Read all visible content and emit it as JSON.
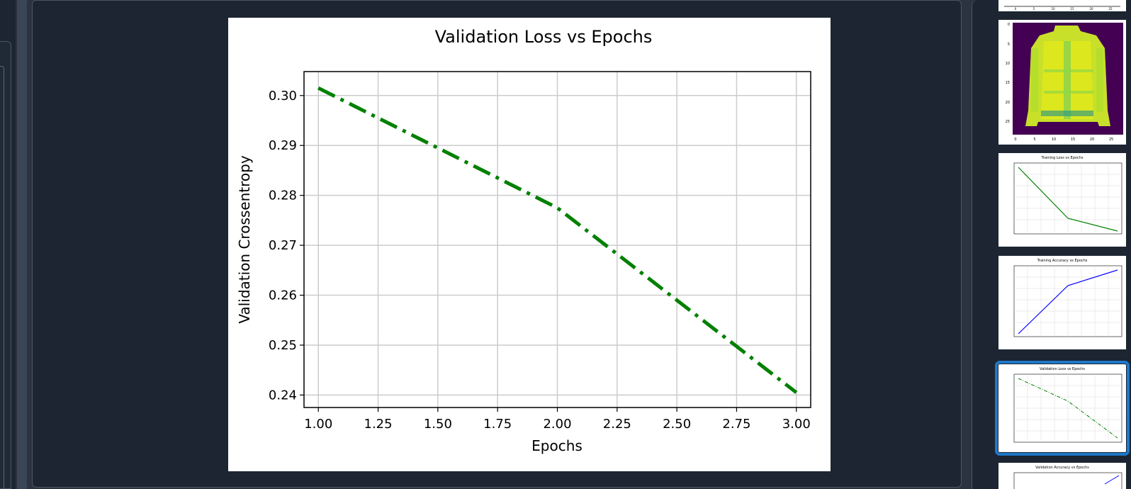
{
  "main_plot": {
    "chart_data": {
      "type": "line",
      "title": "Validation Loss vs Epochs",
      "xlabel": "Epochs",
      "ylabel": "Validation Crossentropy",
      "x": [
        1.0,
        2.0,
        3.0
      ],
      "series": [
        {
          "values": [
            0.3015,
            0.2775,
            0.2405
          ],
          "color": "#008000",
          "style": "dashdot"
        }
      ],
      "xlim": [
        0.94,
        3.06
      ],
      "ylim": [
        0.2375,
        0.3048
      ],
      "x_ticks": [
        1.0,
        1.25,
        1.5,
        1.75,
        2.0,
        2.25,
        2.5,
        2.75,
        3.0
      ],
      "x_tick_labels": [
        "1.00",
        "1.25",
        "1.50",
        "1.75",
        "2.00",
        "2.25",
        "2.50",
        "2.75",
        "3.00"
      ],
      "y_ticks": [
        0.24,
        0.25,
        0.26,
        0.27,
        0.28,
        0.29,
        0.3
      ],
      "y_tick_labels": [
        "0.24",
        "0.25",
        "0.26",
        "0.27",
        "0.28",
        "0.29",
        "0.30"
      ],
      "grid": true
    }
  },
  "thumbnails": {
    "items": [
      {
        "name": "thumb-partial-top",
        "kind": "axis-strip"
      },
      {
        "name": "thumb-image-sample",
        "kind": "image",
        "axis_labels": [
          "0",
          "5",
          "10",
          "15",
          "20",
          "25"
        ]
      },
      {
        "name": "thumb-training-loss",
        "kind": "line",
        "title": "Training Loss vs Epochs",
        "color": "#008000",
        "trend": "down"
      },
      {
        "name": "thumb-training-accuracy",
        "kind": "line",
        "title": "Training Accuracy vs Epochs",
        "color": "#0000ff",
        "trend": "up"
      },
      {
        "name": "thumb-validation-loss",
        "kind": "line",
        "title": "Validation Loss vs Epochs",
        "color": "#008000",
        "trend": "down",
        "selected": true
      },
      {
        "name": "thumb-validation-accuracy",
        "kind": "line",
        "title": "Validation Accuracy vs Epochs",
        "color": "#0000ff",
        "trend": "up"
      }
    ]
  },
  "colors": {
    "panel_bg": "#1c2531",
    "chrome_bg": "#2b3340",
    "selection": "#1f78c8",
    "line_green": "#008000",
    "line_blue": "#0000ff"
  }
}
